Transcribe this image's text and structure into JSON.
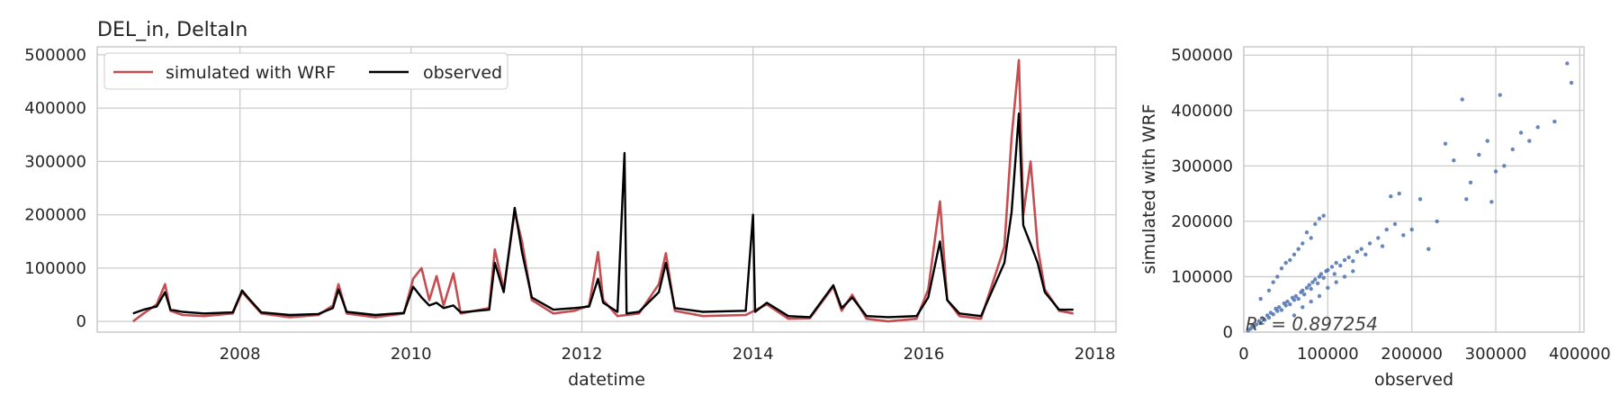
{
  "chart_data": [
    {
      "type": "line",
      "title": "DEL_in, DeltaIn",
      "xlabel": "datetime",
      "ylabel": "",
      "xlim": [
        "2006-05-01",
        "2018-04-01"
      ],
      "ylim": [
        -20000,
        515000
      ],
      "x_ticks": [
        "2008",
        "2010",
        "2012",
        "2014",
        "2016",
        "2018"
      ],
      "y_ticks": [
        "0",
        "100000",
        "200000",
        "300000",
        "400000",
        "500000"
      ],
      "grid": true,
      "legend_position": "top-left",
      "series": [
        {
          "name": "simulated with WRF",
          "color": "#c44e52",
          "points": [
            [
              "2006-10-01",
              0
            ],
            [
              "2006-11-15",
              15000
            ],
            [
              "2007-01-10",
              32000
            ],
            [
              "2007-02-15",
              70000
            ],
            [
              "2007-03-10",
              20000
            ],
            [
              "2007-05-01",
              12000
            ],
            [
              "2007-08-01",
              10000
            ],
            [
              "2007-12-01",
              15000
            ],
            [
              "2008-01-10",
              55000
            ],
            [
              "2008-02-10",
              40000
            ],
            [
              "2008-04-01",
              15000
            ],
            [
              "2008-08-01",
              8000
            ],
            [
              "2008-12-01",
              12000
            ],
            [
              "2009-02-01",
              30000
            ],
            [
              "2009-02-25",
              70000
            ],
            [
              "2009-04-01",
              15000
            ],
            [
              "2009-08-01",
              8000
            ],
            [
              "2009-12-01",
              15000
            ],
            [
              "2010-01-10",
              80000
            ],
            [
              "2010-02-15",
              100000
            ],
            [
              "2010-03-20",
              40000
            ],
            [
              "2010-04-20",
              85000
            ],
            [
              "2010-05-20",
              30000
            ],
            [
              "2010-07-01",
              90000
            ],
            [
              "2010-08-01",
              15000
            ],
            [
              "2010-12-01",
              25000
            ],
            [
              "2010-12-25",
              135000
            ],
            [
              "2011-02-01",
              60000
            ],
            [
              "2011-03-20",
              205000
            ],
            [
              "2011-04-20",
              150000
            ],
            [
              "2011-06-01",
              40000
            ],
            [
              "2011-09-01",
              15000
            ],
            [
              "2011-12-01",
              20000
            ],
            [
              "2012-02-01",
              30000
            ],
            [
              "2012-03-10",
              130000
            ],
            [
              "2012-04-01",
              40000
            ],
            [
              "2012-06-01",
              10000
            ],
            [
              "2012-09-01",
              15000
            ],
            [
              "2012-11-25",
              70000
            ],
            [
              "2012-12-25",
              128000
            ],
            [
              "2013-02-01",
              20000
            ],
            [
              "2013-06-01",
              10000
            ],
            [
              "2013-12-01",
              12000
            ],
            [
              "2014-03-01",
              32000
            ],
            [
              "2014-06-01",
              5000
            ],
            [
              "2014-09-01",
              6000
            ],
            [
              "2014-12-10",
              65000
            ],
            [
              "2015-01-15",
              20000
            ],
            [
              "2015-03-01",
              50000
            ],
            [
              "2015-05-01",
              5000
            ],
            [
              "2015-08-01",
              0
            ],
            [
              "2015-12-01",
              5000
            ],
            [
              "2016-01-20",
              60000
            ],
            [
              "2016-03-10",
              225000
            ],
            [
              "2016-04-10",
              40000
            ],
            [
              "2016-06-01",
              10000
            ],
            [
              "2016-09-01",
              5000
            ],
            [
              "2016-12-10",
              140000
            ],
            [
              "2017-01-10",
              345000
            ],
            [
              "2017-02-10",
              490000
            ],
            [
              "2017-03-01",
              200000
            ],
            [
              "2017-04-01",
              300000
            ],
            [
              "2017-05-01",
              140000
            ],
            [
              "2017-06-01",
              60000
            ],
            [
              "2017-08-01",
              20000
            ],
            [
              "2017-10-01",
              15000
            ]
          ]
        },
        {
          "name": "observed",
          "color": "#000000",
          "points": [
            [
              "2006-10-01",
              15000
            ],
            [
              "2006-11-15",
              22000
            ],
            [
              "2007-01-10",
              28000
            ],
            [
              "2007-02-15",
              55000
            ],
            [
              "2007-03-10",
              22000
            ],
            [
              "2007-05-01",
              18000
            ],
            [
              "2007-08-01",
              15000
            ],
            [
              "2007-12-01",
              17000
            ],
            [
              "2008-01-10",
              58000
            ],
            [
              "2008-02-10",
              42000
            ],
            [
              "2008-04-01",
              17000
            ],
            [
              "2008-08-01",
              12000
            ],
            [
              "2008-12-01",
              14000
            ],
            [
              "2009-02-01",
              25000
            ],
            [
              "2009-02-25",
              60000
            ],
            [
              "2009-04-01",
              18000
            ],
            [
              "2009-08-01",
              12000
            ],
            [
              "2009-12-01",
              16000
            ],
            [
              "2010-01-10",
              65000
            ],
            [
              "2010-02-15",
              45000
            ],
            [
              "2010-03-20",
              30000
            ],
            [
              "2010-04-20",
              35000
            ],
            [
              "2010-05-20",
              25000
            ],
            [
              "2010-07-01",
              30000
            ],
            [
              "2010-08-01",
              17000
            ],
            [
              "2010-12-01",
              22000
            ],
            [
              "2010-12-25",
              110000
            ],
            [
              "2011-02-01",
              55000
            ],
            [
              "2011-03-20",
              213000
            ],
            [
              "2011-04-20",
              130000
            ],
            [
              "2011-06-01",
              45000
            ],
            [
              "2011-09-01",
              22000
            ],
            [
              "2011-12-01",
              25000
            ],
            [
              "2012-02-01",
              28000
            ],
            [
              "2012-03-10",
              80000
            ],
            [
              "2012-04-01",
              35000
            ],
            [
              "2012-06-01",
              18000
            ],
            [
              "2012-07-01",
              316000
            ],
            [
              "2012-07-10",
              15000
            ],
            [
              "2012-09-01",
              18000
            ],
            [
              "2012-11-25",
              55000
            ],
            [
              "2012-12-25",
              110000
            ],
            [
              "2013-02-01",
              25000
            ],
            [
              "2013-06-01",
              18000
            ],
            [
              "2013-12-01",
              20000
            ],
            [
              "2014-01-01",
              200000
            ],
            [
              "2014-01-10",
              18000
            ],
            [
              "2014-03-01",
              35000
            ],
            [
              "2014-06-01",
              10000
            ],
            [
              "2014-09-01",
              8000
            ],
            [
              "2014-12-10",
              68000
            ],
            [
              "2015-01-15",
              25000
            ],
            [
              "2015-03-01",
              45000
            ],
            [
              "2015-05-01",
              10000
            ],
            [
              "2015-08-01",
              8000
            ],
            [
              "2015-12-01",
              10000
            ],
            [
              "2016-01-20",
              45000
            ],
            [
              "2016-03-10",
              150000
            ],
            [
              "2016-04-10",
              40000
            ],
            [
              "2016-06-01",
              15000
            ],
            [
              "2016-09-01",
              10000
            ],
            [
              "2016-12-10",
              110000
            ],
            [
              "2017-01-10",
              205000
            ],
            [
              "2017-02-10",
              390000
            ],
            [
              "2017-03-01",
              180000
            ],
            [
              "2017-04-01",
              145000
            ],
            [
              "2017-05-01",
              110000
            ],
            [
              "2017-06-01",
              55000
            ],
            [
              "2017-08-01",
              22000
            ],
            [
              "2017-10-01",
              22000
            ]
          ]
        }
      ]
    },
    {
      "type": "scatter",
      "title": "",
      "xlabel": "observed",
      "ylabel": "simulated with WRF",
      "xlim": [
        0,
        405000
      ],
      "ylim": [
        0,
        515000
      ],
      "x_ticks": [
        "0",
        "100000",
        "200000",
        "300000",
        "400000"
      ],
      "y_ticks": [
        "0",
        "100000",
        "200000",
        "300000",
        "400000",
        "500000"
      ],
      "grid": true,
      "point_color": "#4c72b0",
      "annotation": "R² = 0.897254",
      "points": [
        [
          5000,
          3000
        ],
        [
          8000,
          6000
        ],
        [
          10000,
          12000
        ],
        [
          12000,
          9000
        ],
        [
          15000,
          14000
        ],
        [
          18000,
          20000
        ],
        [
          20000,
          16000
        ],
        [
          22000,
          25000
        ],
        [
          25000,
          22000
        ],
        [
          28000,
          30000
        ],
        [
          30000,
          26000
        ],
        [
          32000,
          35000
        ],
        [
          35000,
          32000
        ],
        [
          38000,
          42000
        ],
        [
          40000,
          38000
        ],
        [
          42000,
          45000
        ],
        [
          45000,
          40000
        ],
        [
          48000,
          52000
        ],
        [
          50000,
          48000
        ],
        [
          52000,
          55000
        ],
        [
          55000,
          50000
        ],
        [
          58000,
          62000
        ],
        [
          60000,
          58000
        ],
        [
          62000,
          65000
        ],
        [
          65000,
          60000
        ],
        [
          68000,
          72000
        ],
        [
          70000,
          75000
        ],
        [
          72000,
          68000
        ],
        [
          75000,
          80000
        ],
        [
          78000,
          85000
        ],
        [
          80000,
          78000
        ],
        [
          82000,
          90000
        ],
        [
          85000,
          95000
        ],
        [
          88000,
          88000
        ],
        [
          90000,
          100000
        ],
        [
          92000,
          105000
        ],
        [
          95000,
          98000
        ],
        [
          98000,
          110000
        ],
        [
          100000,
          112000
        ],
        [
          105000,
          118000
        ],
        [
          108000,
          105000
        ],
        [
          110000,
          125000
        ],
        [
          115000,
          120000
        ],
        [
          120000,
          130000
        ],
        [
          125000,
          135000
        ],
        [
          130000,
          128000
        ],
        [
          135000,
          145000
        ],
        [
          140000,
          150000
        ],
        [
          145000,
          140000
        ],
        [
          150000,
          160000
        ],
        [
          160000,
          170000
        ],
        [
          165000,
          155000
        ],
        [
          170000,
          185000
        ],
        [
          175000,
          245000
        ],
        [
          180000,
          195000
        ],
        [
          185000,
          250000
        ],
        [
          190000,
          175000
        ],
        [
          200000,
          185000
        ],
        [
          210000,
          240000
        ],
        [
          220000,
          150000
        ],
        [
          230000,
          200000
        ],
        [
          240000,
          340000
        ],
        [
          250000,
          310000
        ],
        [
          260000,
          420000
        ],
        [
          265000,
          240000
        ],
        [
          270000,
          270000
        ],
        [
          280000,
          320000
        ],
        [
          290000,
          345000
        ],
        [
          295000,
          235000
        ],
        [
          300000,
          290000
        ],
        [
          305000,
          428000
        ],
        [
          310000,
          300000
        ],
        [
          320000,
          330000
        ],
        [
          330000,
          360000
        ],
        [
          340000,
          345000
        ],
        [
          350000,
          370000
        ],
        [
          370000,
          380000
        ],
        [
          385000,
          485000
        ],
        [
          390000,
          450000
        ],
        [
          20000,
          60000
        ],
        [
          30000,
          75000
        ],
        [
          35000,
          90000
        ],
        [
          40000,
          100000
        ],
        [
          45000,
          115000
        ],
        [
          50000,
          125000
        ],
        [
          55000,
          130000
        ],
        [
          60000,
          140000
        ],
        [
          65000,
          150000
        ],
        [
          70000,
          160000
        ],
        [
          75000,
          180000
        ],
        [
          80000,
          170000
        ],
        [
          85000,
          195000
        ],
        [
          90000,
          205000
        ],
        [
          95000,
          210000
        ],
        [
          60000,
          30000
        ],
        [
          70000,
          45000
        ],
        [
          80000,
          55000
        ],
        [
          90000,
          65000
        ],
        [
          100000,
          80000
        ],
        [
          110000,
          90000
        ],
        [
          120000,
          100000
        ],
        [
          130000,
          110000
        ]
      ]
    }
  ]
}
